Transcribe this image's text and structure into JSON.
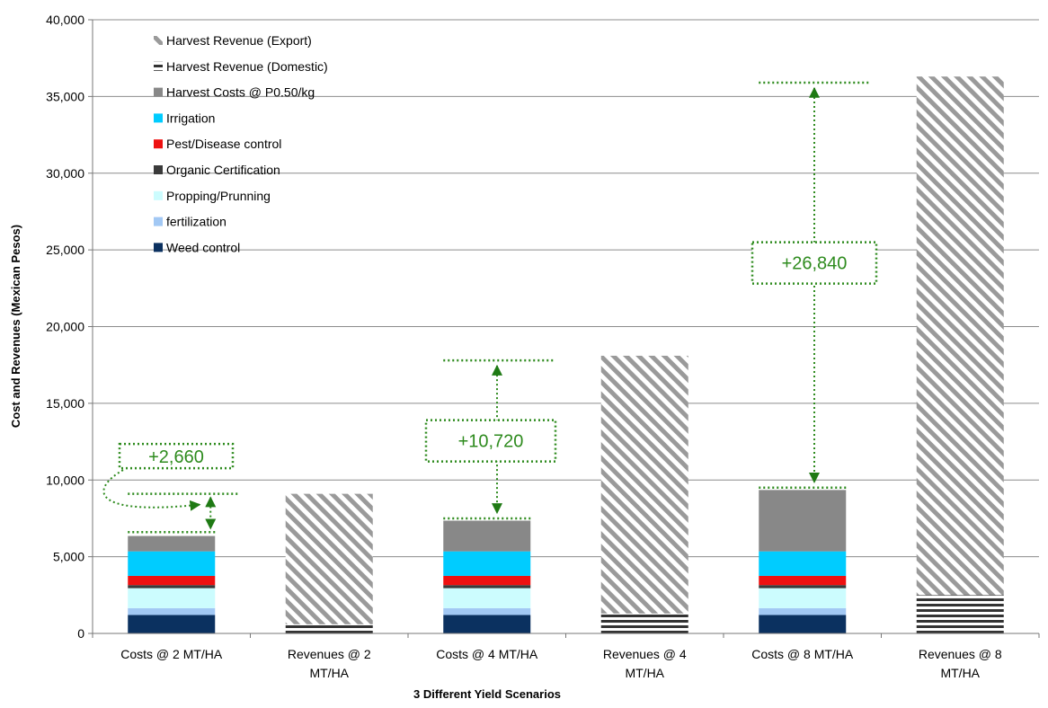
{
  "chart_data": {
    "type": "bar",
    "stacked": true,
    "xlabel": "3 Different Yield Scenarios",
    "ylabel": "Cost and Revenues (Mexican Pesos)",
    "ylim": [
      0,
      40000
    ],
    "y_ticks": [
      "0",
      "5,000",
      "10,000",
      "15,000",
      "20,000",
      "25,000",
      "30,000",
      "35,000",
      "40,000"
    ],
    "y_tick_values": [
      0,
      5000,
      10000,
      15000,
      20000,
      25000,
      30000,
      35000,
      40000
    ],
    "grid": true,
    "legend_position": "top-left",
    "categories": [
      [
        "Costs @ 2 MT/HA"
      ],
      [
        "Revenues @ 2",
        "MT/HA"
      ],
      [
        "Costs @ 4 MT/HA"
      ],
      [
        "Revenues @ 4",
        "MT/HA"
      ],
      [
        "Costs @ 8 MT/HA"
      ],
      [
        "Revenues @ 8",
        "MT/HA"
      ]
    ],
    "series": [
      {
        "name": "Weed control",
        "color": "#0b3160",
        "pattern": "solid",
        "values": [
          1200,
          0,
          1200,
          0,
          1200,
          0
        ]
      },
      {
        "name": "fertilization",
        "color": "#a2c8f4",
        "pattern": "solid",
        "values": [
          450,
          0,
          450,
          0,
          450,
          0
        ]
      },
      {
        "name": "Propping/Prunning",
        "color": "#ccfcfe",
        "pattern": "solid",
        "values": [
          1300,
          0,
          1300,
          0,
          1300,
          0
        ]
      },
      {
        "name": "Organic Certification",
        "color": "#3a3a3a",
        "pattern": "solid",
        "values": [
          200,
          0,
          200,
          0,
          200,
          0
        ]
      },
      {
        "name": "Pest/Disease control",
        "color": "#ee1111",
        "pattern": "solid",
        "values": [
          600,
          0,
          600,
          0,
          600,
          0
        ]
      },
      {
        "name": "Irrigation",
        "color": "#00ccff",
        "pattern": "solid",
        "values": [
          1600,
          0,
          1600,
          0,
          1600,
          0
        ]
      },
      {
        "name": "Harvest Costs @ P0.50/kg",
        "color": "#888888",
        "pattern": "solid",
        "values": [
          1000,
          0,
          2000,
          0,
          4000,
          0
        ]
      },
      {
        "name": "Harvest Revenue (Domestic)",
        "color": "#333333",
        "pattern": "horizontal-stripes",
        "values": [
          0,
          600,
          0,
          1300,
          0,
          2500
        ]
      },
      {
        "name": "Harvest Revenue (Export)",
        "color": "#999999",
        "pattern": "diagonal-stripes",
        "values": [
          0,
          8500,
          0,
          16800,
          0,
          33800
        ]
      }
    ],
    "legend_order": [
      "Harvest Revenue (Export)",
      "Harvest Revenue (Domestic)",
      "Harvest Costs @ P0.50/kg",
      "Irrigation",
      "Pest/Disease control",
      "Organic Certification",
      "Propping/Prunning",
      "fertilization",
      "Weed control"
    ],
    "annotations": [
      {
        "text": "+2,660",
        "from_category": 0,
        "from_value": 6600,
        "to_value": 9100,
        "color": "#2e8b1e"
      },
      {
        "text": "+10,720",
        "from_category": 2,
        "from_value": 7500,
        "to_value": 17800,
        "color": "#2e8b1e"
      },
      {
        "text": "+26,840",
        "from_category": 4,
        "from_value": 9500,
        "to_value": 35900,
        "color": "#2e8b1e"
      }
    ]
  }
}
